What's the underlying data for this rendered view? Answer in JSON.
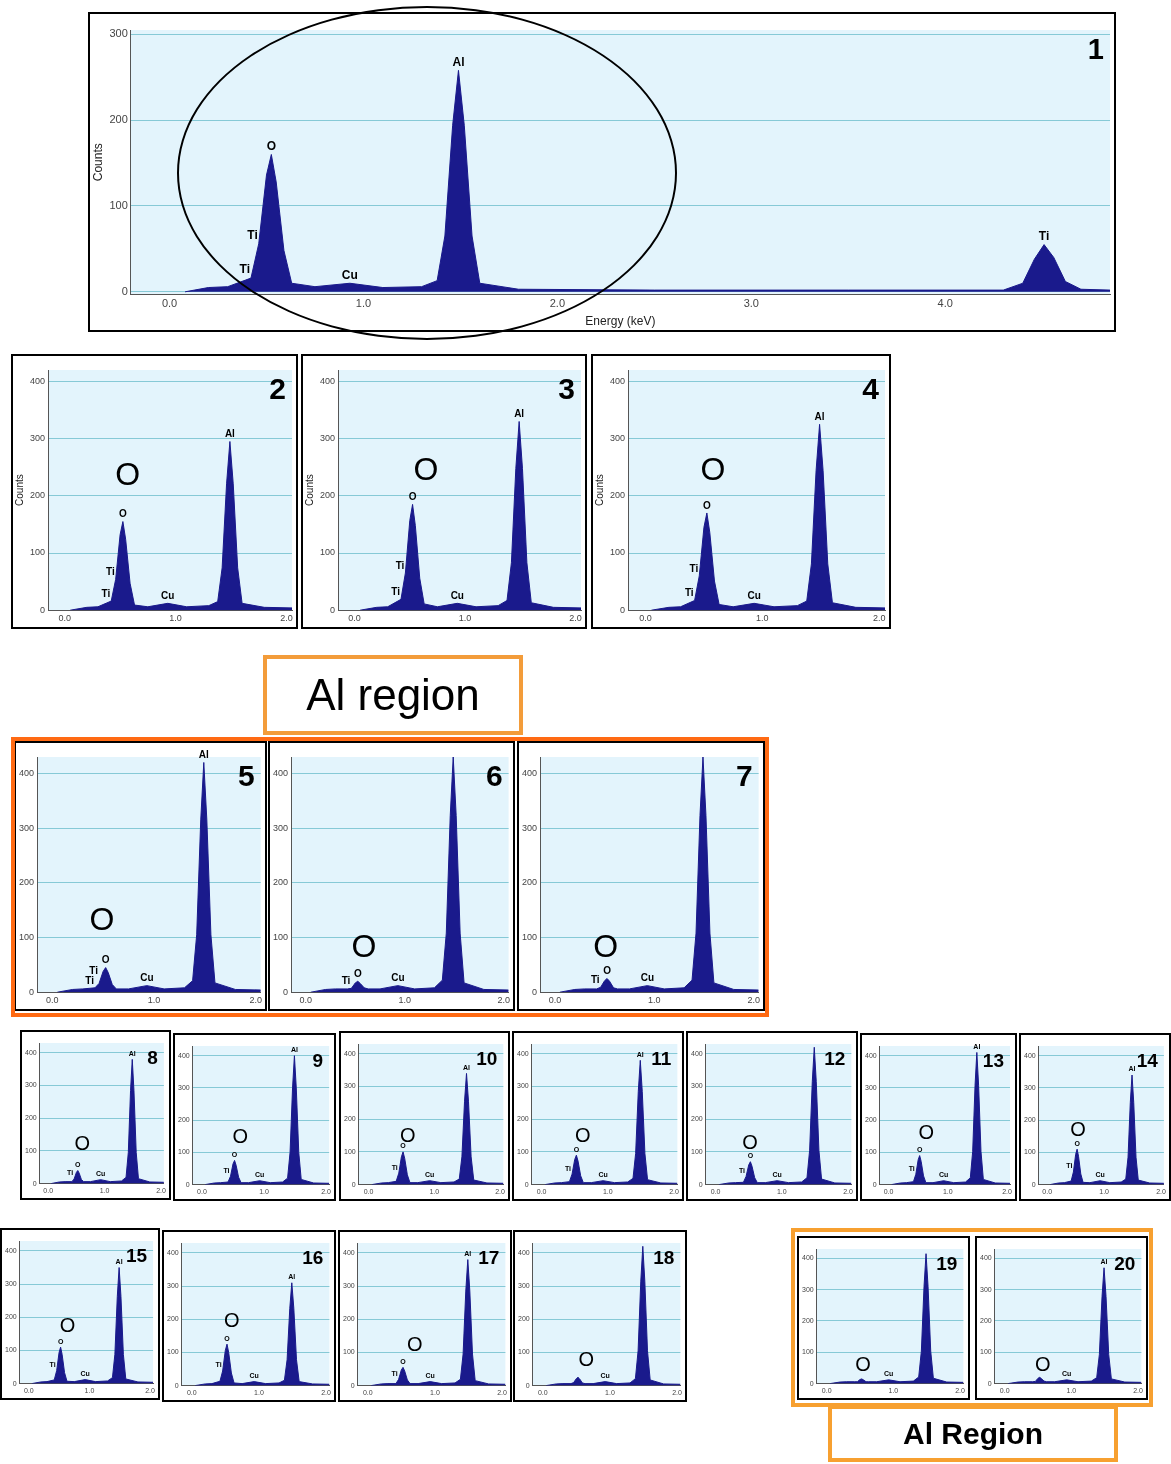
{
  "chart_data": [
    {
      "type": "area",
      "title": "1",
      "xlabel": "Energy (keV)",
      "ylabel": "Counts",
      "color": "#1a1a8c",
      "grid": "y",
      "xlim": [
        -0.2,
        4.85
      ],
      "ylim": [
        -3,
        305
      ],
      "xticks": [
        {
          "value": 0,
          "label": "0.0"
        },
        {
          "value": 1,
          "label": "1.0"
        },
        {
          "value": 2,
          "label": "2.0"
        },
        {
          "value": 3,
          "label": "3.0"
        },
        {
          "value": 4,
          "label": "4.0"
        }
      ],
      "yticks": [
        0,
        100,
        200,
        300
      ],
      "x": [
        0.08,
        0.2,
        0.3,
        0.42,
        0.46,
        0.5,
        0.525,
        0.55,
        0.59,
        0.63,
        0.75,
        0.93,
        1.1,
        1.3,
        1.38,
        1.42,
        1.46,
        1.49,
        1.52,
        1.56,
        1.6,
        1.8,
        2.5,
        3.5,
        4.3,
        4.4,
        4.46,
        4.51,
        4.56,
        4.62,
        4.7,
        4.85
      ],
      "values": [
        0,
        5,
        6,
        16,
        56,
        136,
        160,
        128,
        48,
        10,
        6,
        10,
        5,
        6,
        13,
        65,
        194,
        258,
        194,
        65,
        10,
        3,
        2,
        2,
        2,
        10,
        38,
        55,
        40,
        12,
        3,
        2
      ],
      "annotations": [
        {
          "text": "Ti",
          "x": 0.42,
          "y": 16
        },
        {
          "text": "Ti",
          "x": 0.46,
          "y": 56
        },
        {
          "text": "O",
          "x": 0.525,
          "y": 160
        },
        {
          "text": "Cu",
          "x": 0.93,
          "y": 10
        },
        {
          "text": "Al",
          "x": 1.49,
          "y": 258
        },
        {
          "text": "Ti",
          "x": 4.51,
          "y": 55
        }
      ]
    },
    {
      "type": "area",
      "title": "2",
      "ylabel": "Counts",
      "color": "#1a1a8c",
      "grid": "y",
      "xlim": [
        -0.15,
        2.05
      ],
      "ylim": [
        0,
        420
      ],
      "xticks": [
        {
          "value": 0,
          "label": "0.0"
        },
        {
          "value": 1,
          "label": "1.0"
        },
        {
          "value": 2,
          "label": "2.0"
        }
      ],
      "yticks": [
        0,
        100,
        200,
        300,
        400
      ],
      "x": [
        0.05,
        0.2,
        0.3,
        0.42,
        0.46,
        0.5,
        0.525,
        0.55,
        0.59,
        0.63,
        0.75,
        0.93,
        1.1,
        1.3,
        1.38,
        1.42,
        1.46,
        1.49,
        1.52,
        1.56,
        1.6,
        1.8,
        2.05
      ],
      "values": [
        0,
        5,
        6,
        16,
        54,
        132,
        155,
        124,
        47,
        9,
        6,
        12,
        6,
        8,
        15,
        74,
        221,
        295,
        221,
        74,
        12,
        5,
        4
      ],
      "annotations": [
        "O",
        {
          "text": "Ti",
          "x": 0.42,
          "y": 16
        },
        {
          "text": "Ti",
          "x": 0.46,
          "y": 54
        },
        {
          "text": "O",
          "x": 0.525,
          "y": 155
        },
        {
          "text": "Cu",
          "x": 0.93,
          "y": 12
        },
        {
          "text": "Al",
          "x": 1.49,
          "y": 295
        }
      ]
    },
    {
      "type": "area",
      "title": "3",
      "ylabel": "Counts",
      "color": "#1a1a8c",
      "grid": "y",
      "xlim": [
        -0.15,
        2.05
      ],
      "ylim": [
        0,
        420
      ],
      "xticks": [
        {
          "value": 0,
          "label": "0.0"
        },
        {
          "value": 1,
          "label": "1.0"
        },
        {
          "value": 2,
          "label": "2.0"
        }
      ],
      "yticks": [
        0,
        100,
        200,
        300,
        400
      ],
      "x": [
        0.05,
        0.2,
        0.3,
        0.42,
        0.46,
        0.5,
        0.525,
        0.55,
        0.59,
        0.63,
        0.75,
        0.93,
        1.1,
        1.3,
        1.38,
        1.42,
        1.46,
        1.49,
        1.52,
        1.56,
        1.6,
        1.8,
        2.05
      ],
      "values": [
        0,
        5,
        6,
        19,
        65,
        157,
        185,
        148,
        56,
        11,
        6,
        12,
        6,
        8,
        17,
        83,
        248,
        330,
        248,
        83,
        13,
        5,
        4
      ],
      "annotations": [
        "O",
        {
          "text": "Ti",
          "x": 0.42,
          "y": 19
        },
        {
          "text": "Ti",
          "x": 0.46,
          "y": 65
        },
        {
          "text": "O",
          "x": 0.525,
          "y": 185
        },
        {
          "text": "Cu",
          "x": 0.93,
          "y": 12
        },
        {
          "text": "Al",
          "x": 1.49,
          "y": 330
        }
      ]
    },
    {
      "type": "area",
      "title": "4",
      "ylabel": "Counts",
      "color": "#1a1a8c",
      "grid": "y",
      "xlim": [
        -0.15,
        2.05
      ],
      "ylim": [
        0,
        420
      ],
      "xticks": [
        {
          "value": 0,
          "label": "0.0"
        },
        {
          "value": 1,
          "label": "1.0"
        },
        {
          "value": 2,
          "label": "2.0"
        }
      ],
      "yticks": [
        0,
        100,
        200,
        300,
        400
      ],
      "x": [
        0.05,
        0.2,
        0.3,
        0.42,
        0.46,
        0.5,
        0.525,
        0.55,
        0.59,
        0.63,
        0.75,
        0.93,
        1.1,
        1.3,
        1.38,
        1.42,
        1.46,
        1.49,
        1.52,
        1.56,
        1.6,
        1.8,
        2.05
      ],
      "values": [
        0,
        5,
        6,
        17,
        60,
        145,
        170,
        136,
        51,
        10,
        6,
        12,
        6,
        8,
        16,
        81,
        244,
        325,
        244,
        81,
        13,
        5,
        4
      ],
      "annotations": [
        "O",
        {
          "text": "Ti",
          "x": 0.42,
          "y": 17
        },
        {
          "text": "Ti",
          "x": 0.46,
          "y": 60
        },
        {
          "text": "O",
          "x": 0.525,
          "y": 170
        },
        {
          "text": "Cu",
          "x": 0.93,
          "y": 12
        },
        {
          "text": "Al",
          "x": 1.49,
          "y": 325
        }
      ]
    },
    {
      "type": "area",
      "title": "5",
      "color": "#1a1a8c",
      "grid": "y",
      "xlim": [
        -0.15,
        2.05
      ],
      "ylim": [
        0,
        430
      ],
      "xticks": [
        {
          "value": 0,
          "label": "0.0"
        },
        {
          "value": 1,
          "label": "1.0"
        },
        {
          "value": 2,
          "label": "2.0"
        }
      ],
      "yticks": [
        0,
        100,
        200,
        300,
        400
      ],
      "x": [
        0.05,
        0.2,
        0.3,
        0.42,
        0.46,
        0.5,
        0.525,
        0.55,
        0.59,
        0.63,
        0.75,
        0.93,
        1.1,
        1.3,
        1.38,
        1.42,
        1.46,
        1.49,
        1.52,
        1.56,
        1.6,
        1.8,
        2.05
      ],
      "values": [
        0,
        5,
        6,
        8,
        16,
        38,
        45,
        36,
        14,
        6,
        6,
        12,
        6,
        8,
        21,
        105,
        315,
        420,
        315,
        105,
        17,
        5,
        4
      ],
      "annotations": [
        "Al region",
        "O",
        {
          "text": "Ti",
          "x": 0.42,
          "y": 8
        },
        {
          "text": "Ti",
          "x": 0.46,
          "y": 16
        },
        {
          "text": "O",
          "x": 0.525,
          "y": 45
        },
        {
          "text": "Cu",
          "x": 0.93,
          "y": 12
        },
        {
          "text": "Al",
          "x": 1.49,
          "y": 420
        }
      ]
    },
    {
      "type": "area",
      "title": "6",
      "color": "#1a1a8c",
      "grid": "y",
      "xlim": [
        -0.15,
        2.05
      ],
      "ylim": [
        0,
        430
      ],
      "xticks": [
        {
          "value": 0,
          "label": "0.0"
        },
        {
          "value": 1,
          "label": "1.0"
        },
        {
          "value": 2,
          "label": "2.0"
        }
      ],
      "yticks": [
        0,
        100,
        200,
        300,
        400
      ],
      "x": [
        0.05,
        0.2,
        0.3,
        0.42,
        0.46,
        0.5,
        0.525,
        0.55,
        0.59,
        0.63,
        0.75,
        0.93,
        1.1,
        1.3,
        1.38,
        1.42,
        1.46,
        1.49,
        1.52,
        1.56,
        1.6,
        1.8,
        2.05
      ],
      "values": [
        0,
        5,
        6,
        6,
        7,
        17,
        20,
        16,
        8,
        6,
        6,
        12,
        6,
        8,
        22,
        108,
        323,
        430,
        323,
        108,
        17,
        5,
        4
      ],
      "annotations": [
        "O",
        {
          "text": "Ti",
          "x": 0.46,
          "y": 7
        },
        {
          "text": "O",
          "x": 0.525,
          "y": 20
        },
        {
          "text": "Cu",
          "x": 0.93,
          "y": 12
        }
      ]
    },
    {
      "type": "area",
      "title": "7",
      "color": "#1a1a8c",
      "grid": "y",
      "xlim": [
        -0.15,
        2.05
      ],
      "ylim": [
        0,
        430
      ],
      "xticks": [
        {
          "value": 0,
          "label": "0.0"
        },
        {
          "value": 1,
          "label": "1.0"
        },
        {
          "value": 2,
          "label": "2.0"
        }
      ],
      "yticks": [
        0,
        100,
        200,
        300,
        400
      ],
      "x": [
        0.05,
        0.2,
        0.3,
        0.42,
        0.46,
        0.5,
        0.525,
        0.55,
        0.59,
        0.63,
        0.75,
        0.93,
        1.1,
        1.3,
        1.38,
        1.42,
        1.46,
        1.49,
        1.52,
        1.56,
        1.6,
        1.8,
        2.05
      ],
      "values": [
        0,
        5,
        6,
        6,
        9,
        21,
        25,
        20,
        8,
        6,
        6,
        12,
        6,
        8,
        22,
        108,
        323,
        430,
        323,
        108,
        17,
        5,
        4
      ],
      "annotations": [
        "O",
        {
          "text": "Ti",
          "x": 0.46,
          "y": 9
        },
        {
          "text": "O",
          "x": 0.525,
          "y": 25
        },
        {
          "text": "Cu",
          "x": 0.93,
          "y": 12
        }
      ]
    },
    {
      "type": "area",
      "title": "8",
      "color": "#1a1a8c",
      "grid": "y",
      "xlim": [
        -0.15,
        2.05
      ],
      "ylim": [
        0,
        430
      ],
      "xticks": [
        {
          "value": 0,
          "label": "0.0"
        },
        {
          "value": 1,
          "label": "1.0"
        },
        {
          "value": 2,
          "label": "2.0"
        }
      ],
      "yticks": [
        0,
        100,
        200,
        300,
        400
      ],
      "x": [
        0.05,
        0.2,
        0.3,
        0.42,
        0.46,
        0.5,
        0.525,
        0.55,
        0.59,
        0.63,
        0.75,
        0.93,
        1.1,
        1.3,
        1.38,
        1.42,
        1.46,
        1.49,
        1.52,
        1.56,
        1.6,
        1.8,
        2.05
      ],
      "values": [
        0,
        5,
        6,
        6,
        14,
        34,
        40,
        32,
        12,
        6,
        6,
        12,
        6,
        8,
        19,
        95,
        285,
        380,
        285,
        95,
        15,
        5,
        4
      ],
      "annotations": [
        "O",
        {
          "text": "Ti",
          "x": 0.46,
          "y": 14
        },
        {
          "text": "O",
          "x": 0.525,
          "y": 40
        },
        {
          "text": "Cu",
          "x": 0.93,
          "y": 12
        },
        {
          "text": "Al",
          "x": 1.49,
          "y": 380
        }
      ]
    },
    {
      "type": "area",
      "title": "9",
      "color": "#1a1a8c",
      "grid": "y",
      "xlim": [
        -0.15,
        2.05
      ],
      "ylim": [
        0,
        430
      ],
      "xticks": [
        {
          "value": 0,
          "label": "0.0"
        },
        {
          "value": 1,
          "label": "1.0"
        },
        {
          "value": 2,
          "label": "2.0"
        }
      ],
      "yticks": [
        0,
        100,
        200,
        300,
        400
      ],
      "x": [
        0.05,
        0.2,
        0.3,
        0.42,
        0.46,
        0.5,
        0.525,
        0.55,
        0.59,
        0.63,
        0.75,
        0.93,
        1.1,
        1.3,
        1.38,
        1.42,
        1.46,
        1.49,
        1.52,
        1.56,
        1.6,
        1.8,
        2.05
      ],
      "values": [
        0,
        5,
        6,
        8,
        26,
        64,
        75,
        60,
        23,
        6,
        6,
        12,
        6,
        8,
        20,
        100,
        300,
        400,
        300,
        100,
        16,
        5,
        4
      ],
      "annotations": [
        "O",
        {
          "text": "Ti",
          "x": 0.46,
          "y": 26
        },
        {
          "text": "O",
          "x": 0.525,
          "y": 75
        },
        {
          "text": "Cu",
          "x": 0.93,
          "y": 12
        },
        {
          "text": "Al",
          "x": 1.49,
          "y": 400
        }
      ]
    },
    {
      "type": "area",
      "title": "10",
      "color": "#1a1a8c",
      "grid": "y",
      "xlim": [
        -0.15,
        2.05
      ],
      "ylim": [
        0,
        430
      ],
      "xticks": [
        {
          "value": 0,
          "label": "0.0"
        },
        {
          "value": 1,
          "label": "1.0"
        },
        {
          "value": 2,
          "label": "2.0"
        }
      ],
      "yticks": [
        0,
        100,
        200,
        300,
        400
      ],
      "x": [
        0.05,
        0.2,
        0.3,
        0.42,
        0.46,
        0.5,
        0.525,
        0.55,
        0.59,
        0.63,
        0.75,
        0.93,
        1.1,
        1.3,
        1.38,
        1.42,
        1.46,
        1.49,
        1.52,
        1.56,
        1.6,
        1.8,
        2.05
      ],
      "values": [
        0,
        5,
        6,
        10,
        35,
        85,
        100,
        80,
        30,
        6,
        6,
        12,
        6,
        8,
        17,
        85,
        255,
        340,
        255,
        85,
        14,
        5,
        4
      ],
      "annotations": [
        "O",
        {
          "text": "Ti",
          "x": 0.46,
          "y": 35
        },
        {
          "text": "O",
          "x": 0.525,
          "y": 100
        },
        {
          "text": "Cu",
          "x": 0.93,
          "y": 12
        },
        {
          "text": "Al",
          "x": 1.49,
          "y": 340
        }
      ]
    },
    {
      "type": "area",
      "title": "11",
      "color": "#1a1a8c",
      "grid": "y",
      "xlim": [
        -0.15,
        2.05
      ],
      "ylim": [
        0,
        430
      ],
      "xticks": [
        {
          "value": 0,
          "label": "0.0"
        },
        {
          "value": 1,
          "label": "1.0"
        },
        {
          "value": 2,
          "label": "2.0"
        }
      ],
      "yticks": [
        0,
        100,
        200,
        300,
        400
      ],
      "x": [
        0.05,
        0.2,
        0.3,
        0.42,
        0.46,
        0.5,
        0.525,
        0.55,
        0.59,
        0.63,
        0.75,
        0.93,
        1.1,
        1.3,
        1.38,
        1.42,
        1.46,
        1.49,
        1.52,
        1.56,
        1.6,
        1.8,
        2.05
      ],
      "values": [
        0,
        5,
        6,
        9,
        32,
        77,
        90,
        72,
        27,
        6,
        6,
        12,
        6,
        8,
        19,
        95,
        285,
        380,
        285,
        95,
        15,
        5,
        4
      ],
      "annotations": [
        "O",
        {
          "text": "Ti",
          "x": 0.46,
          "y": 32
        },
        {
          "text": "O",
          "x": 0.525,
          "y": 90
        },
        {
          "text": "Cu",
          "x": 0.93,
          "y": 12
        },
        {
          "text": "Al",
          "x": 1.49,
          "y": 380
        }
      ]
    },
    {
      "type": "area",
      "title": "12",
      "color": "#1a1a8c",
      "grid": "y",
      "xlim": [
        -0.15,
        2.05
      ],
      "ylim": [
        0,
        430
      ],
      "xticks": [
        {
          "value": 0,
          "label": "0.0"
        },
        {
          "value": 1,
          "label": "1.0"
        },
        {
          "value": 2,
          "label": "2.0"
        }
      ],
      "yticks": [
        0,
        100,
        200,
        300,
        400
      ],
      "x": [
        0.05,
        0.2,
        0.3,
        0.42,
        0.46,
        0.5,
        0.525,
        0.55,
        0.59,
        0.63,
        0.75,
        0.93,
        1.1,
        1.3,
        1.38,
        1.42,
        1.46,
        1.49,
        1.52,
        1.56,
        1.6,
        1.8,
        2.05
      ],
      "values": [
        0,
        5,
        6,
        7,
        25,
        60,
        70,
        56,
        21,
        6,
        6,
        12,
        6,
        8,
        21,
        105,
        315,
        420,
        315,
        105,
        17,
        5,
        4
      ],
      "annotations": [
        "O",
        {
          "text": "Ti",
          "x": 0.46,
          "y": 25
        },
        {
          "text": "O",
          "x": 0.525,
          "y": 70
        },
        {
          "text": "Cu",
          "x": 0.93,
          "y": 12
        }
      ]
    },
    {
      "type": "area",
      "title": "13",
      "color": "#1a1a8c",
      "grid": "y",
      "xlim": [
        -0.15,
        2.05
      ],
      "ylim": [
        0,
        430
      ],
      "xticks": [
        {
          "value": 0,
          "label": "0.0"
        },
        {
          "value": 1,
          "label": "1.0"
        },
        {
          "value": 2,
          "label": "2.0"
        }
      ],
      "yticks": [
        0,
        100,
        200,
        300,
        400
      ],
      "x": [
        0.05,
        0.2,
        0.3,
        0.42,
        0.46,
        0.5,
        0.525,
        0.55,
        0.59,
        0.63,
        0.75,
        0.93,
        1.1,
        1.3,
        1.38,
        1.42,
        1.46,
        1.49,
        1.52,
        1.56,
        1.6,
        1.8,
        2.05
      ],
      "values": [
        0,
        5,
        6,
        9,
        32,
        77,
        90,
        72,
        27,
        6,
        6,
        12,
        6,
        8,
        21,
        103,
        308,
        410,
        308,
        103,
        16,
        5,
        4
      ],
      "annotations": [
        "O",
        {
          "text": "Ti",
          "x": 0.46,
          "y": 32
        },
        {
          "text": "O",
          "x": 0.525,
          "y": 90
        },
        {
          "text": "Cu",
          "x": 0.93,
          "y": 12
        },
        {
          "text": "Al",
          "x": 1.49,
          "y": 410
        }
      ]
    },
    {
      "type": "area",
      "title": "14",
      "color": "#1a1a8c",
      "grid": "y",
      "xlim": [
        -0.15,
        2.05
      ],
      "ylim": [
        0,
        430
      ],
      "xticks": [
        {
          "value": 0,
          "label": "0.0"
        },
        {
          "value": 1,
          "label": "1.0"
        },
        {
          "value": 2,
          "label": "2.0"
        }
      ],
      "yticks": [
        0,
        100,
        200,
        300,
        400
      ],
      "x": [
        0.05,
        0.2,
        0.3,
        0.42,
        0.46,
        0.5,
        0.525,
        0.55,
        0.59,
        0.63,
        0.75,
        0.93,
        1.1,
        1.3,
        1.38,
        1.42,
        1.46,
        1.49,
        1.52,
        1.56,
        1.6,
        1.8,
        2.05
      ],
      "values": [
        0,
        5,
        6,
        11,
        39,
        94,
        110,
        88,
        33,
        7,
        6,
        12,
        6,
        8,
        17,
        85,
        255,
        340,
        255,
        85,
        14,
        5,
        4
      ],
      "annotations": [
        "O",
        {
          "text": "Ti",
          "x": 0.46,
          "y": 39
        },
        {
          "text": "O",
          "x": 0.525,
          "y": 110
        },
        {
          "text": "Cu",
          "x": 0.93,
          "y": 12
        },
        {
          "text": "Al",
          "x": 1.49,
          "y": 340
        }
      ]
    },
    {
      "type": "area",
      "title": "15",
      "color": "#1a1a8c",
      "grid": "y",
      "xlim": [
        -0.15,
        2.05
      ],
      "ylim": [
        0,
        430
      ],
      "xticks": [
        {
          "value": 0,
          "label": "0.0"
        },
        {
          "value": 1,
          "label": "1.0"
        },
        {
          "value": 2,
          "label": "2.0"
        }
      ],
      "yticks": [
        0,
        100,
        200,
        300,
        400
      ],
      "x": [
        0.05,
        0.2,
        0.3,
        0.42,
        0.46,
        0.5,
        0.525,
        0.55,
        0.59,
        0.63,
        0.75,
        0.93,
        1.1,
        1.3,
        1.38,
        1.42,
        1.46,
        1.49,
        1.52,
        1.56,
        1.6,
        1.8,
        2.05
      ],
      "values": [
        0,
        5,
        6,
        11,
        39,
        94,
        110,
        88,
        33,
        7,
        6,
        12,
        6,
        8,
        18,
        88,
        263,
        350,
        263,
        88,
        14,
        5,
        4
      ],
      "annotations": [
        "O",
        {
          "text": "Ti",
          "x": 0.46,
          "y": 39
        },
        {
          "text": "O",
          "x": 0.525,
          "y": 110
        },
        {
          "text": "Cu",
          "x": 0.93,
          "y": 12
        },
        {
          "text": "Al",
          "x": 1.49,
          "y": 350
        }
      ]
    },
    {
      "type": "area",
      "title": "16",
      "color": "#1a1a8c",
      "grid": "y",
      "xlim": [
        -0.15,
        2.05
      ],
      "ylim": [
        0,
        430
      ],
      "xticks": [
        {
          "value": 0,
          "label": "0.0"
        },
        {
          "value": 1,
          "label": "1.0"
        },
        {
          "value": 2,
          "label": "2.0"
        }
      ],
      "yticks": [
        0,
        100,
        200,
        300,
        400
      ],
      "x": [
        0.05,
        0.2,
        0.3,
        0.42,
        0.46,
        0.5,
        0.525,
        0.55,
        0.59,
        0.63,
        0.75,
        0.93,
        1.1,
        1.3,
        1.38,
        1.42,
        1.46,
        1.49,
        1.52,
        1.56,
        1.6,
        1.8,
        2.05
      ],
      "values": [
        0,
        5,
        6,
        13,
        44,
        106,
        125,
        100,
        38,
        8,
        6,
        12,
        6,
        8,
        16,
        78,
        233,
        310,
        233,
        78,
        12,
        5,
        4
      ],
      "annotations": [
        "O",
        {
          "text": "Ti",
          "x": 0.46,
          "y": 44
        },
        {
          "text": "O",
          "x": 0.525,
          "y": 125
        },
        {
          "text": "Cu",
          "x": 0.93,
          "y": 12
        },
        {
          "text": "Al",
          "x": 1.49,
          "y": 310
        }
      ]
    },
    {
      "type": "area",
      "title": "17",
      "color": "#1a1a8c",
      "grid": "y",
      "xlim": [
        -0.15,
        2.05
      ],
      "ylim": [
        0,
        430
      ],
      "xticks": [
        {
          "value": 0,
          "label": "0.0"
        },
        {
          "value": 1,
          "label": "1.0"
        },
        {
          "value": 2,
          "label": "2.0"
        }
      ],
      "yticks": [
        0,
        100,
        200,
        300,
        400
      ],
      "x": [
        0.05,
        0.2,
        0.3,
        0.42,
        0.46,
        0.5,
        0.525,
        0.55,
        0.59,
        0.63,
        0.75,
        0.93,
        1.1,
        1.3,
        1.38,
        1.42,
        1.46,
        1.49,
        1.52,
        1.56,
        1.6,
        1.8,
        2.05
      ],
      "values": [
        0,
        5,
        6,
        6,
        19,
        47,
        55,
        44,
        17,
        6,
        6,
        12,
        6,
        8,
        19,
        95,
        285,
        380,
        285,
        95,
        15,
        5,
        4
      ],
      "annotations": [
        "O",
        {
          "text": "Ti",
          "x": 0.46,
          "y": 19
        },
        {
          "text": "O",
          "x": 0.525,
          "y": 55
        },
        {
          "text": "Cu",
          "x": 0.93,
          "y": 12
        },
        {
          "text": "Al",
          "x": 1.49,
          "y": 380
        }
      ]
    },
    {
      "type": "area",
      "title": "18",
      "color": "#1a1a8c",
      "grid": "y",
      "xlim": [
        -0.15,
        2.05
      ],
      "ylim": [
        0,
        430
      ],
      "xticks": [
        {
          "value": 0,
          "label": "0.0"
        },
        {
          "value": 1,
          "label": "1.0"
        },
        {
          "value": 2,
          "label": "2.0"
        }
      ],
      "yticks": [
        0,
        100,
        200,
        300,
        400
      ],
      "x": [
        0.05,
        0.2,
        0.3,
        0.42,
        0.46,
        0.5,
        0.525,
        0.55,
        0.59,
        0.63,
        0.75,
        0.93,
        1.1,
        1.3,
        1.38,
        1.42,
        1.46,
        1.49,
        1.52,
        1.56,
        1.6,
        1.8,
        2.05
      ],
      "values": [
        0,
        5,
        6,
        6,
        9,
        21,
        25,
        20,
        8,
        6,
        6,
        12,
        6,
        8,
        21,
        105,
        315,
        420,
        315,
        105,
        17,
        5,
        4
      ],
      "annotations": [
        "O",
        {
          "text": "Cu",
          "x": 0.93,
          "y": 12
        }
      ]
    },
    {
      "type": "area",
      "title": "19",
      "color": "#1a1a8c",
      "grid": "y",
      "xlim": [
        -0.15,
        2.05
      ],
      "ylim": [
        0,
        430
      ],
      "xticks": [
        {
          "value": 0,
          "label": "0.0"
        },
        {
          "value": 1,
          "label": "1.0"
        },
        {
          "value": 2,
          "label": "2.0"
        }
      ],
      "yticks": [
        0,
        100,
        200,
        300,
        400
      ],
      "x": [
        0.05,
        0.2,
        0.3,
        0.42,
        0.46,
        0.5,
        0.525,
        0.55,
        0.59,
        0.63,
        0.75,
        0.93,
        1.1,
        1.3,
        1.38,
        1.42,
        1.46,
        1.49,
        1.52,
        1.56,
        1.6,
        1.8,
        2.05
      ],
      "values": [
        0,
        5,
        6,
        6,
        6,
        13,
        15,
        12,
        6,
        6,
        6,
        12,
        6,
        8,
        21,
        104,
        311,
        415,
        311,
        104,
        17,
        5,
        4
      ],
      "annotations": [
        "Al Region",
        "O",
        {
          "text": "Cu",
          "x": 0.93,
          "y": 12
        }
      ]
    },
    {
      "type": "area",
      "title": "20",
      "color": "#1a1a8c",
      "grid": "y",
      "xlim": [
        -0.15,
        2.05
      ],
      "ylim": [
        0,
        430
      ],
      "xticks": [
        {
          "value": 0,
          "label": "0.0"
        },
        {
          "value": 1,
          "label": "1.0"
        },
        {
          "value": 2,
          "label": "2.0"
        }
      ],
      "yticks": [
        0,
        100,
        200,
        300,
        400
      ],
      "x": [
        0.05,
        0.2,
        0.3,
        0.42,
        0.46,
        0.5,
        0.525,
        0.55,
        0.59,
        0.63,
        0.75,
        0.93,
        1.1,
        1.3,
        1.38,
        1.42,
        1.46,
        1.49,
        1.52,
        1.56,
        1.6,
        1.8,
        2.05
      ],
      "values": [
        0,
        5,
        6,
        6,
        7,
        17,
        20,
        16,
        8,
        6,
        6,
        12,
        6,
        8,
        19,
        93,
        278,
        370,
        278,
        93,
        15,
        5,
        4
      ],
      "annotations": [
        "O",
        {
          "text": "Cu",
          "x": 0.93,
          "y": 12
        },
        {
          "text": "Al",
          "x": 1.49,
          "y": 370
        }
      ]
    }
  ]
}
